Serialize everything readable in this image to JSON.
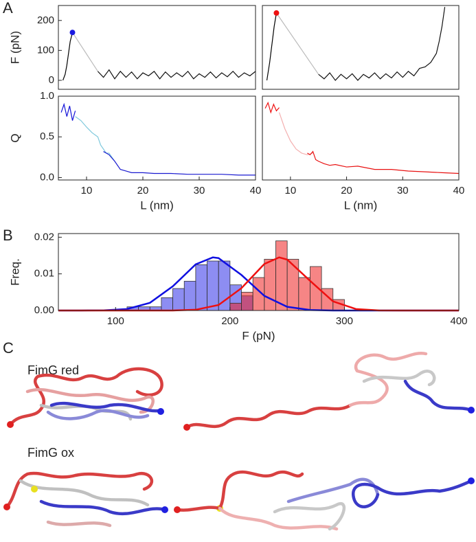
{
  "panel_labels": [
    "A",
    "B",
    "C"
  ],
  "structure_labels": [
    {
      "text": "FimG red",
      "color": "#2a2ad8"
    },
    {
      "text": "FimG ox",
      "color": "#e03030"
    }
  ],
  "chart_data": [
    {
      "type": "line",
      "ylabel": "F (pN)",
      "xlim": [
        5,
        40
      ],
      "ylim": [
        -30,
        250
      ],
      "yticks": [
        0,
        100,
        200
      ],
      "series": [
        {
          "color": "#000000",
          "x": [
            5.8,
            6.2,
            6.5,
            6.8,
            7.1,
            7.5
          ],
          "values": [
            0,
            20,
            50,
            90,
            130,
            160
          ]
        },
        {
          "color": "#bbbbbb",
          "x": [
            7.5,
            12
          ],
          "values": [
            160,
            30
          ]
        },
        {
          "color": "#111111",
          "x": [
            12,
            13,
            14,
            15,
            16,
            17,
            18,
            19,
            20,
            21,
            22,
            23,
            24,
            25,
            26,
            27,
            28,
            29,
            30,
            31,
            32,
            33,
            34,
            35,
            36,
            37,
            38,
            39,
            40
          ],
          "values": [
            30,
            10,
            35,
            5,
            30,
            10,
            28,
            5,
            25,
            15,
            30,
            5,
            28,
            10,
            25,
            12,
            30,
            5,
            22,
            10,
            28,
            8,
            25,
            12,
            30,
            10,
            25,
            15,
            30
          ]
        }
      ],
      "peak": {
        "x": 7.5,
        "y": 160,
        "color": "#1a1ae0"
      }
    },
    {
      "type": "line",
      "ylabel": "Q",
      "xlabel": "L (nm)",
      "xlim": [
        5,
        40
      ],
      "ylim": [
        -0.03,
        1.0
      ],
      "xticks": [
        10,
        20,
        30,
        40
      ],
      "yticks": [
        {
          "value": 0,
          "label": "0.0"
        },
        0.5,
        {
          "value": 1,
          "label": "1.0"
        }
      ],
      "series": [
        {
          "color": "#1414d8",
          "x": [
            5.5,
            6,
            6.5,
            7,
            7.5,
            8
          ],
          "values": [
            0.8,
            0.9,
            0.75,
            0.88,
            0.7,
            0.82
          ]
        },
        {
          "color": "#7ec8dc",
          "x": [
            8,
            9,
            10,
            11,
            12,
            12.5,
            13,
            13.5,
            14,
            15
          ],
          "values": [
            0.75,
            0.7,
            0.62,
            0.55,
            0.5,
            0.4,
            0.35,
            0.3,
            0.3,
            0.2
          ]
        },
        {
          "color": "#1a1ad0",
          "x": [
            13,
            13.5,
            14,
            15,
            16,
            17,
            18,
            20,
            22,
            25,
            28,
            31,
            34,
            37,
            40
          ],
          "values": [
            0.32,
            0.3,
            0.28,
            0.2,
            0.1,
            0.08,
            0.06,
            0.06,
            0.05,
            0.05,
            0.04,
            0.04,
            0.04,
            0.03,
            0.03
          ]
        }
      ]
    },
    {
      "type": "line",
      "xlim": [
        5,
        40
      ],
      "ylim": [
        -30,
        250
      ],
      "series": [
        {
          "color": "#000000",
          "x": [
            5.8,
            6.3,
            6.7,
            7.1,
            7.5
          ],
          "values": [
            0,
            60,
            120,
            180,
            225
          ]
        },
        {
          "color": "#bbbbbb",
          "x": [
            7.5,
            15
          ],
          "values": [
            225,
            20
          ]
        },
        {
          "color": "#111111",
          "x": [
            15,
            16,
            17,
            18,
            19,
            20,
            21,
            22,
            23,
            24,
            25,
            26,
            27,
            28,
            29,
            30,
            31,
            32,
            33,
            34,
            35,
            36,
            36.5,
            37,
            37.5
          ],
          "values": [
            20,
            5,
            25,
            0,
            20,
            5,
            22,
            0,
            20,
            8,
            25,
            5,
            22,
            8,
            28,
            10,
            30,
            15,
            40,
            45,
            60,
            90,
            130,
            180,
            245
          ]
        }
      ],
      "peak": {
        "x": 7.5,
        "y": 225,
        "color": "#ee1111"
      }
    },
    {
      "type": "line",
      "xlabel": "L (nm)",
      "xlim": [
        5,
        40
      ],
      "ylim": [
        -0.03,
        1.0
      ],
      "xticks": [
        10,
        20,
        30,
        40
      ],
      "series": [
        {
          "color": "#ee1111",
          "x": [
            5.5,
            6,
            6.5,
            7,
            7.5,
            8
          ],
          "values": [
            0.85,
            0.92,
            0.8,
            0.9,
            0.82,
            0.86
          ]
        },
        {
          "color": "#f4b0b0",
          "x": [
            8,
            9,
            10,
            11,
            12,
            13,
            14
          ],
          "values": [
            0.8,
            0.6,
            0.45,
            0.35,
            0.3,
            0.28,
            0.3
          ]
        },
        {
          "color": "#e81010",
          "x": [
            13,
            13.5,
            14,
            14.5,
            15,
            16,
            17,
            18,
            20,
            22,
            25,
            28,
            31,
            34,
            37,
            40
          ],
          "values": [
            0.3,
            0.28,
            0.32,
            0.22,
            0.2,
            0.17,
            0.15,
            0.16,
            0.13,
            0.14,
            0.1,
            0.1,
            0.08,
            0.07,
            0.06,
            0.05
          ]
        }
      ]
    },
    {
      "type": "histogram",
      "ylabel": "Freq.",
      "xlabel": "F (pN)",
      "xlim": [
        50,
        400
      ],
      "ylim": [
        0,
        0.021
      ],
      "xticks": [
        100,
        200,
        300,
        400
      ],
      "yticks": [
        {
          "value": 0,
          "label": "0.00"
        },
        {
          "value": 0.01,
          "label": "0.01"
        },
        {
          "value": 0.02,
          "label": "0.02"
        }
      ],
      "series": [
        {
          "color": "#3030e8",
          "bins": [
            110,
            120,
            130,
            140,
            150,
            160,
            170,
            180,
            190,
            200,
            210,
            220
          ],
          "values": [
            0.001,
            0.001,
            0.001,
            0.0035,
            0.006,
            0.008,
            0.0125,
            0.0135,
            0.0135,
            0.007,
            0.004
          ]
        },
        {
          "color": "#ee2020",
          "bins": [
            200,
            210,
            220,
            230,
            240,
            250,
            260,
            270,
            280,
            290,
            300
          ],
          "values": [
            0.002,
            0.005,
            0.009,
            0.014,
            0.019,
            0.014,
            0.009,
            0.012,
            0.006,
            0.003
          ]
        }
      ],
      "fits": [
        {
          "color": "#1010e0",
          "x": [
            50,
            70,
            90,
            110,
            130,
            150,
            170,
            185,
            190,
            210,
            230,
            250,
            270,
            290,
            400
          ],
          "values": [
            0,
            0,
            5e-05,
            0.0004,
            0.0021,
            0.0066,
            0.0126,
            0.0145,
            0.0143,
            0.0097,
            0.004,
            0.001,
            0.00014,
            0,
            0
          ]
        },
        {
          "color": "#ee1010",
          "x": [
            50,
            150,
            170,
            190,
            210,
            230,
            243,
            250,
            270,
            290,
            310,
            330,
            350,
            400
          ],
          "values": [
            0,
            1e-05,
            0.0002,
            0.0015,
            0.0061,
            0.0127,
            0.0145,
            0.0139,
            0.0081,
            0.0025,
            0.0004,
            3e-05,
            0,
            0
          ]
        }
      ]
    }
  ]
}
